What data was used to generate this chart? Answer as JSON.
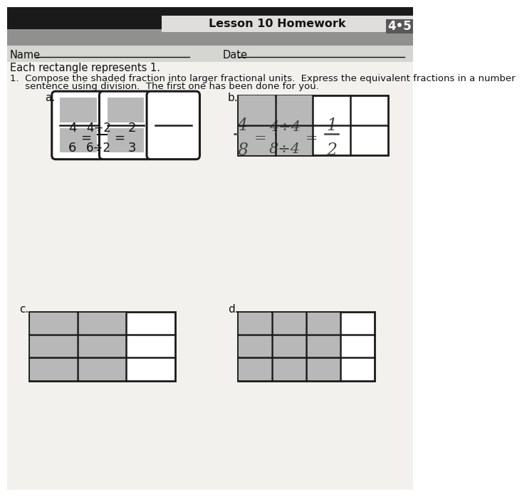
{
  "paper_color_top": "#c8c8c8",
  "paper_color_main": "#f2f1ee",
  "header_strip_dark": "#1a1a1a",
  "header_strip_gray": "#909090",
  "header_bar_color": "#d8d8d8",
  "header_text": "Lesson 10 Homework",
  "header_badge_bg": "#606060",
  "header_badge_text": "4•5",
  "name_label": "Name",
  "date_label": "Date",
  "intro_text": "Each rectangle represents 1.",
  "q1_line1": "1.  Compose the shaded fraction into larger fractional units.  Express the equivalent fractions in a number",
  "q1_line2": "     sentence using division.  The first one has been done for you.",
  "label_a": "a.",
  "label_b": "b.",
  "label_c": "c.",
  "label_d": "d.",
  "shade_color": "#b8b8b8",
  "line_color": "#1a1a1a",
  "white": "#ffffff",
  "text_color": "#111111"
}
